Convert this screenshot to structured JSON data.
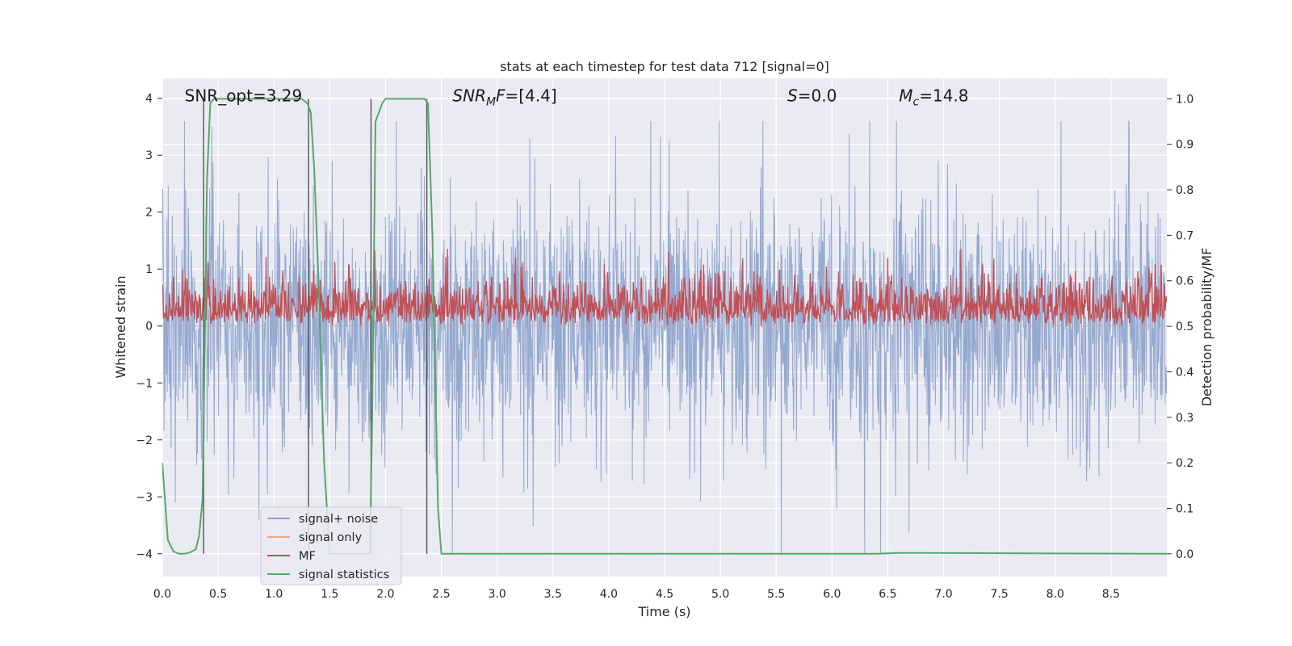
{
  "chart_data": {
    "type": "line",
    "title": "stats at each timestep for test data 712 [signal=0]",
    "xlabel": "Time (s)",
    "ylabel_left": "Whitened strain",
    "ylabel_right": "Detection probability/MF",
    "xlim": [
      0,
      9.0
    ],
    "ylim_left": [
      -4.4,
      4.35
    ],
    "ylim_right": [
      -0.05,
      1.045
    ],
    "x_ticks": [
      "0.0",
      "0.5",
      "1.0",
      "1.5",
      "2.0",
      "2.5",
      "3.0",
      "3.5",
      "4.0",
      "4.5",
      "5.0",
      "5.5",
      "6.0",
      "6.5",
      "7.0",
      "7.5",
      "8.0",
      "8.5"
    ],
    "x_tick_values": [
      0,
      0.5,
      1.0,
      1.5,
      2.0,
      2.5,
      3.0,
      3.5,
      4.0,
      4.5,
      5.0,
      5.5,
      6.0,
      6.5,
      7.0,
      7.5,
      8.0,
      8.5
    ],
    "y_left_ticks": [
      "−4",
      "−3",
      "−2",
      "−1",
      "0",
      "1",
      "2",
      "3",
      "4"
    ],
    "y_left_tick_values": [
      -4,
      -3,
      -2,
      -1,
      0,
      1,
      2,
      3,
      4
    ],
    "y_right_ticks": [
      "0.0",
      "0.1",
      "0.2",
      "0.3",
      "0.4",
      "0.5",
      "0.6",
      "0.7",
      "0.8",
      "0.9",
      "1.0"
    ],
    "y_right_tick_values": [
      0,
      0.1,
      0.2,
      0.3,
      0.4,
      0.5,
      0.6,
      0.7,
      0.8,
      0.9,
      1.0
    ],
    "annotations": [
      {
        "text": "SNR_opt=3.29",
        "x": 0.2,
        "y": 4.0,
        "axis": "left"
      },
      {
        "text": "SNR_MF=[4.4]",
        "x": 2.6,
        "y": 4.0,
        "axis": "left",
        "math": "snrmf"
      },
      {
        "text": "S=0.0",
        "x": 5.6,
        "y": 4.0,
        "axis": "left",
        "math": "s"
      },
      {
        "text": "M_c=14.8",
        "x": 6.6,
        "y": 4.0,
        "axis": "left",
        "math": "mc"
      }
    ],
    "legend": {
      "placement": "lower-left",
      "entries": [
        {
          "label": "signal+ noise",
          "color": "#8fa5ce"
        },
        {
          "label": "signal only",
          "color": "#e8a98a"
        },
        {
          "label": "MF",
          "color": "#c44e52"
        },
        {
          "label": "signal statistics",
          "color": "#55a868"
        }
      ]
    },
    "vertical_lines": [
      0.37,
      1.31,
      1.87,
      2.37
    ],
    "series": [
      {
        "name": "signal statistics",
        "axis": "right",
        "color": "#55a868",
        "x": [
          0,
          0.05,
          0.1,
          0.15,
          0.2,
          0.25,
          0.3,
          0.33,
          0.36,
          0.38,
          0.4,
          0.43,
          0.46,
          0.5,
          1.0,
          1.25,
          1.3,
          1.33,
          1.36,
          1.4,
          1.45,
          1.5,
          1.8,
          1.86,
          1.88,
          1.91,
          1.94,
          1.97,
          2.0,
          2.35,
          2.38,
          2.42,
          2.47,
          2.5,
          6.4,
          6.6,
          9.0
        ],
        "y": [
          0.2,
          0.03,
          0.005,
          0.0,
          0.0,
          0.003,
          0.01,
          0.04,
          0.12,
          0.45,
          0.82,
          0.99,
          1.0,
          1.0,
          1.0,
          1.0,
          0.99,
          0.97,
          0.85,
          0.6,
          0.2,
          0.0,
          0.0,
          0.0,
          0.3,
          0.95,
          0.97,
          0.99,
          1.0,
          1.0,
          0.99,
          0.7,
          0.1,
          0.0,
          0.0,
          0.002,
          0.0
        ]
      },
      {
        "name": "MF",
        "axis": "right",
        "color": "#c44e52",
        "baseline": 0.5,
        "typical_range": [
          0.5,
          0.66
        ],
        "peak_max": 0.67
      },
      {
        "name": "signal+ noise",
        "axis": "left",
        "color": "#8fa5ce",
        "typical_range": [
          -2.0,
          2.2
        ],
        "extreme_range": [
          -4.0,
          3.6
        ]
      },
      {
        "name": "signal only",
        "axis": "left",
        "color": "#e8a98a",
        "constant": 0.0
      }
    ]
  }
}
